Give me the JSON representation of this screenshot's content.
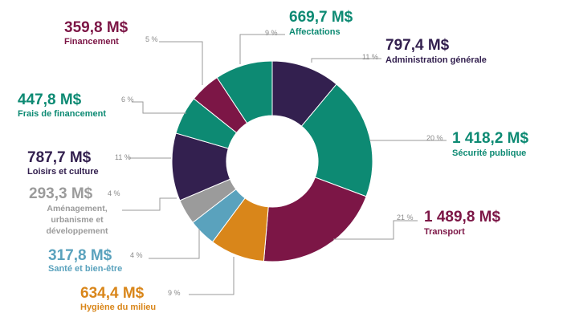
{
  "chart_data": {
    "type": "pie",
    "variant": "donut",
    "slices": [
      {
        "category": "Administration générale",
        "amount": "797,4 M$",
        "percent": "11 %",
        "value": 797.4,
        "color": "#33204f"
      },
      {
        "category": "Sécurité publique",
        "amount": "1 418,2 M$",
        "percent": "20 %",
        "value": 1418.2,
        "color": "#0d8a73"
      },
      {
        "category": "Transport",
        "amount": "1 489,8 M$",
        "percent": "21 %",
        "value": 1489.8,
        "color": "#7c1646"
      },
      {
        "category": "Hygiène du milieu",
        "amount": "634,4 M$",
        "percent": "9 %",
        "value": 634.4,
        "color": "#d9861a"
      },
      {
        "category": "Santé et bien-être",
        "amount": "317,8 M$",
        "percent": "4 %",
        "value": 317.8,
        "color": "#5aa2bd"
      },
      {
        "category": "Aménagement, urbanisme et développement",
        "amount": "293,3 M$",
        "percent": "4 %",
        "value": 293.3,
        "color": "#9b9b9b"
      },
      {
        "category": "Loisirs et culture",
        "amount": "787,7 M$",
        "percent": "11 %",
        "value": 787.7,
        "color": "#33204f"
      },
      {
        "category": "Frais de financement",
        "amount": "447,8 M$",
        "percent": "6 %",
        "value": 447.8,
        "color": "#0d8a73"
      },
      {
        "category": "Financement",
        "amount": "359,8 M$",
        "percent": "5 %",
        "value": 359.8,
        "color": "#7c1646"
      },
      {
        "category": "Affectations",
        "amount": "669,7 M$",
        "percent": "9 %",
        "value": 669.7,
        "color": "#0d8a73"
      }
    ]
  }
}
